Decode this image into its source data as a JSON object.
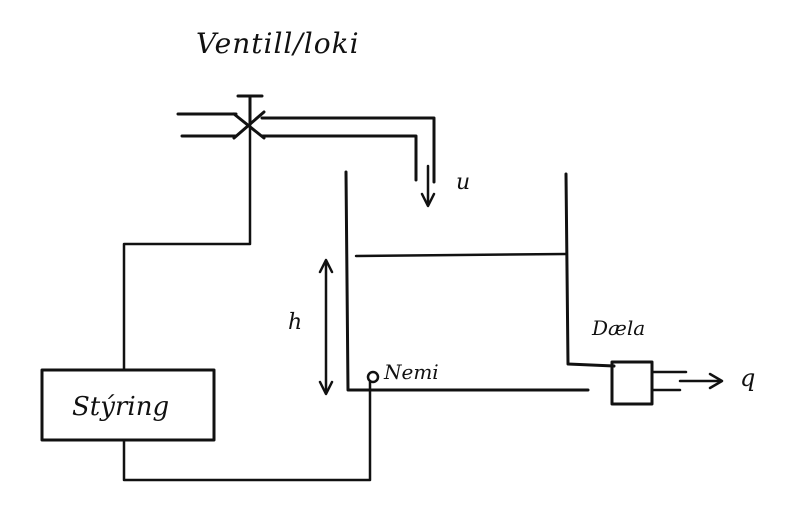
{
  "labels": {
    "valve": "Ventill/loki",
    "inflow": "u",
    "level": "h",
    "sensor": "Nemi",
    "pump": "Dæla",
    "outflow": "q",
    "controller": "Stýring"
  },
  "colors": {
    "ink": "#111111",
    "paper": "#ffffff"
  }
}
